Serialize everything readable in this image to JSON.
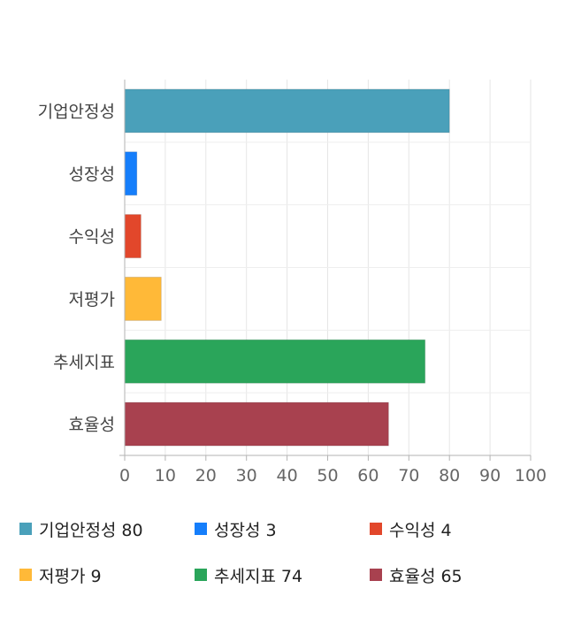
{
  "chart_data": {
    "type": "bar",
    "orientation": "horizontal",
    "categories": [
      "기업안정성",
      "성장성",
      "수익성",
      "저평가",
      "추세지표",
      "효율성"
    ],
    "values": [
      80,
      3,
      4,
      9,
      74,
      65
    ],
    "colors": [
      "#4aa0ba",
      "#157efb",
      "#e2472b",
      "#ffb938",
      "#2aa55a",
      "#a8414f"
    ],
    "xlim": [
      0,
      100
    ],
    "xticks": [
      0,
      10,
      20,
      30,
      40,
      50,
      60,
      70,
      80,
      90,
      100
    ],
    "grid": true,
    "legend_position": "bottom"
  },
  "legend": [
    {
      "label": "기업안정성",
      "value": "80",
      "color": "#4aa0ba"
    },
    {
      "label": "성장성",
      "value": "3",
      "color": "#157efb"
    },
    {
      "label": "수익성",
      "value": "4",
      "color": "#e2472b"
    },
    {
      "label": "저평가",
      "value": "9",
      "color": "#ffb938"
    },
    {
      "label": "추세지표",
      "value": "74",
      "color": "#2aa55a"
    },
    {
      "label": "효율성",
      "value": "65",
      "color": "#a8414f"
    }
  ]
}
